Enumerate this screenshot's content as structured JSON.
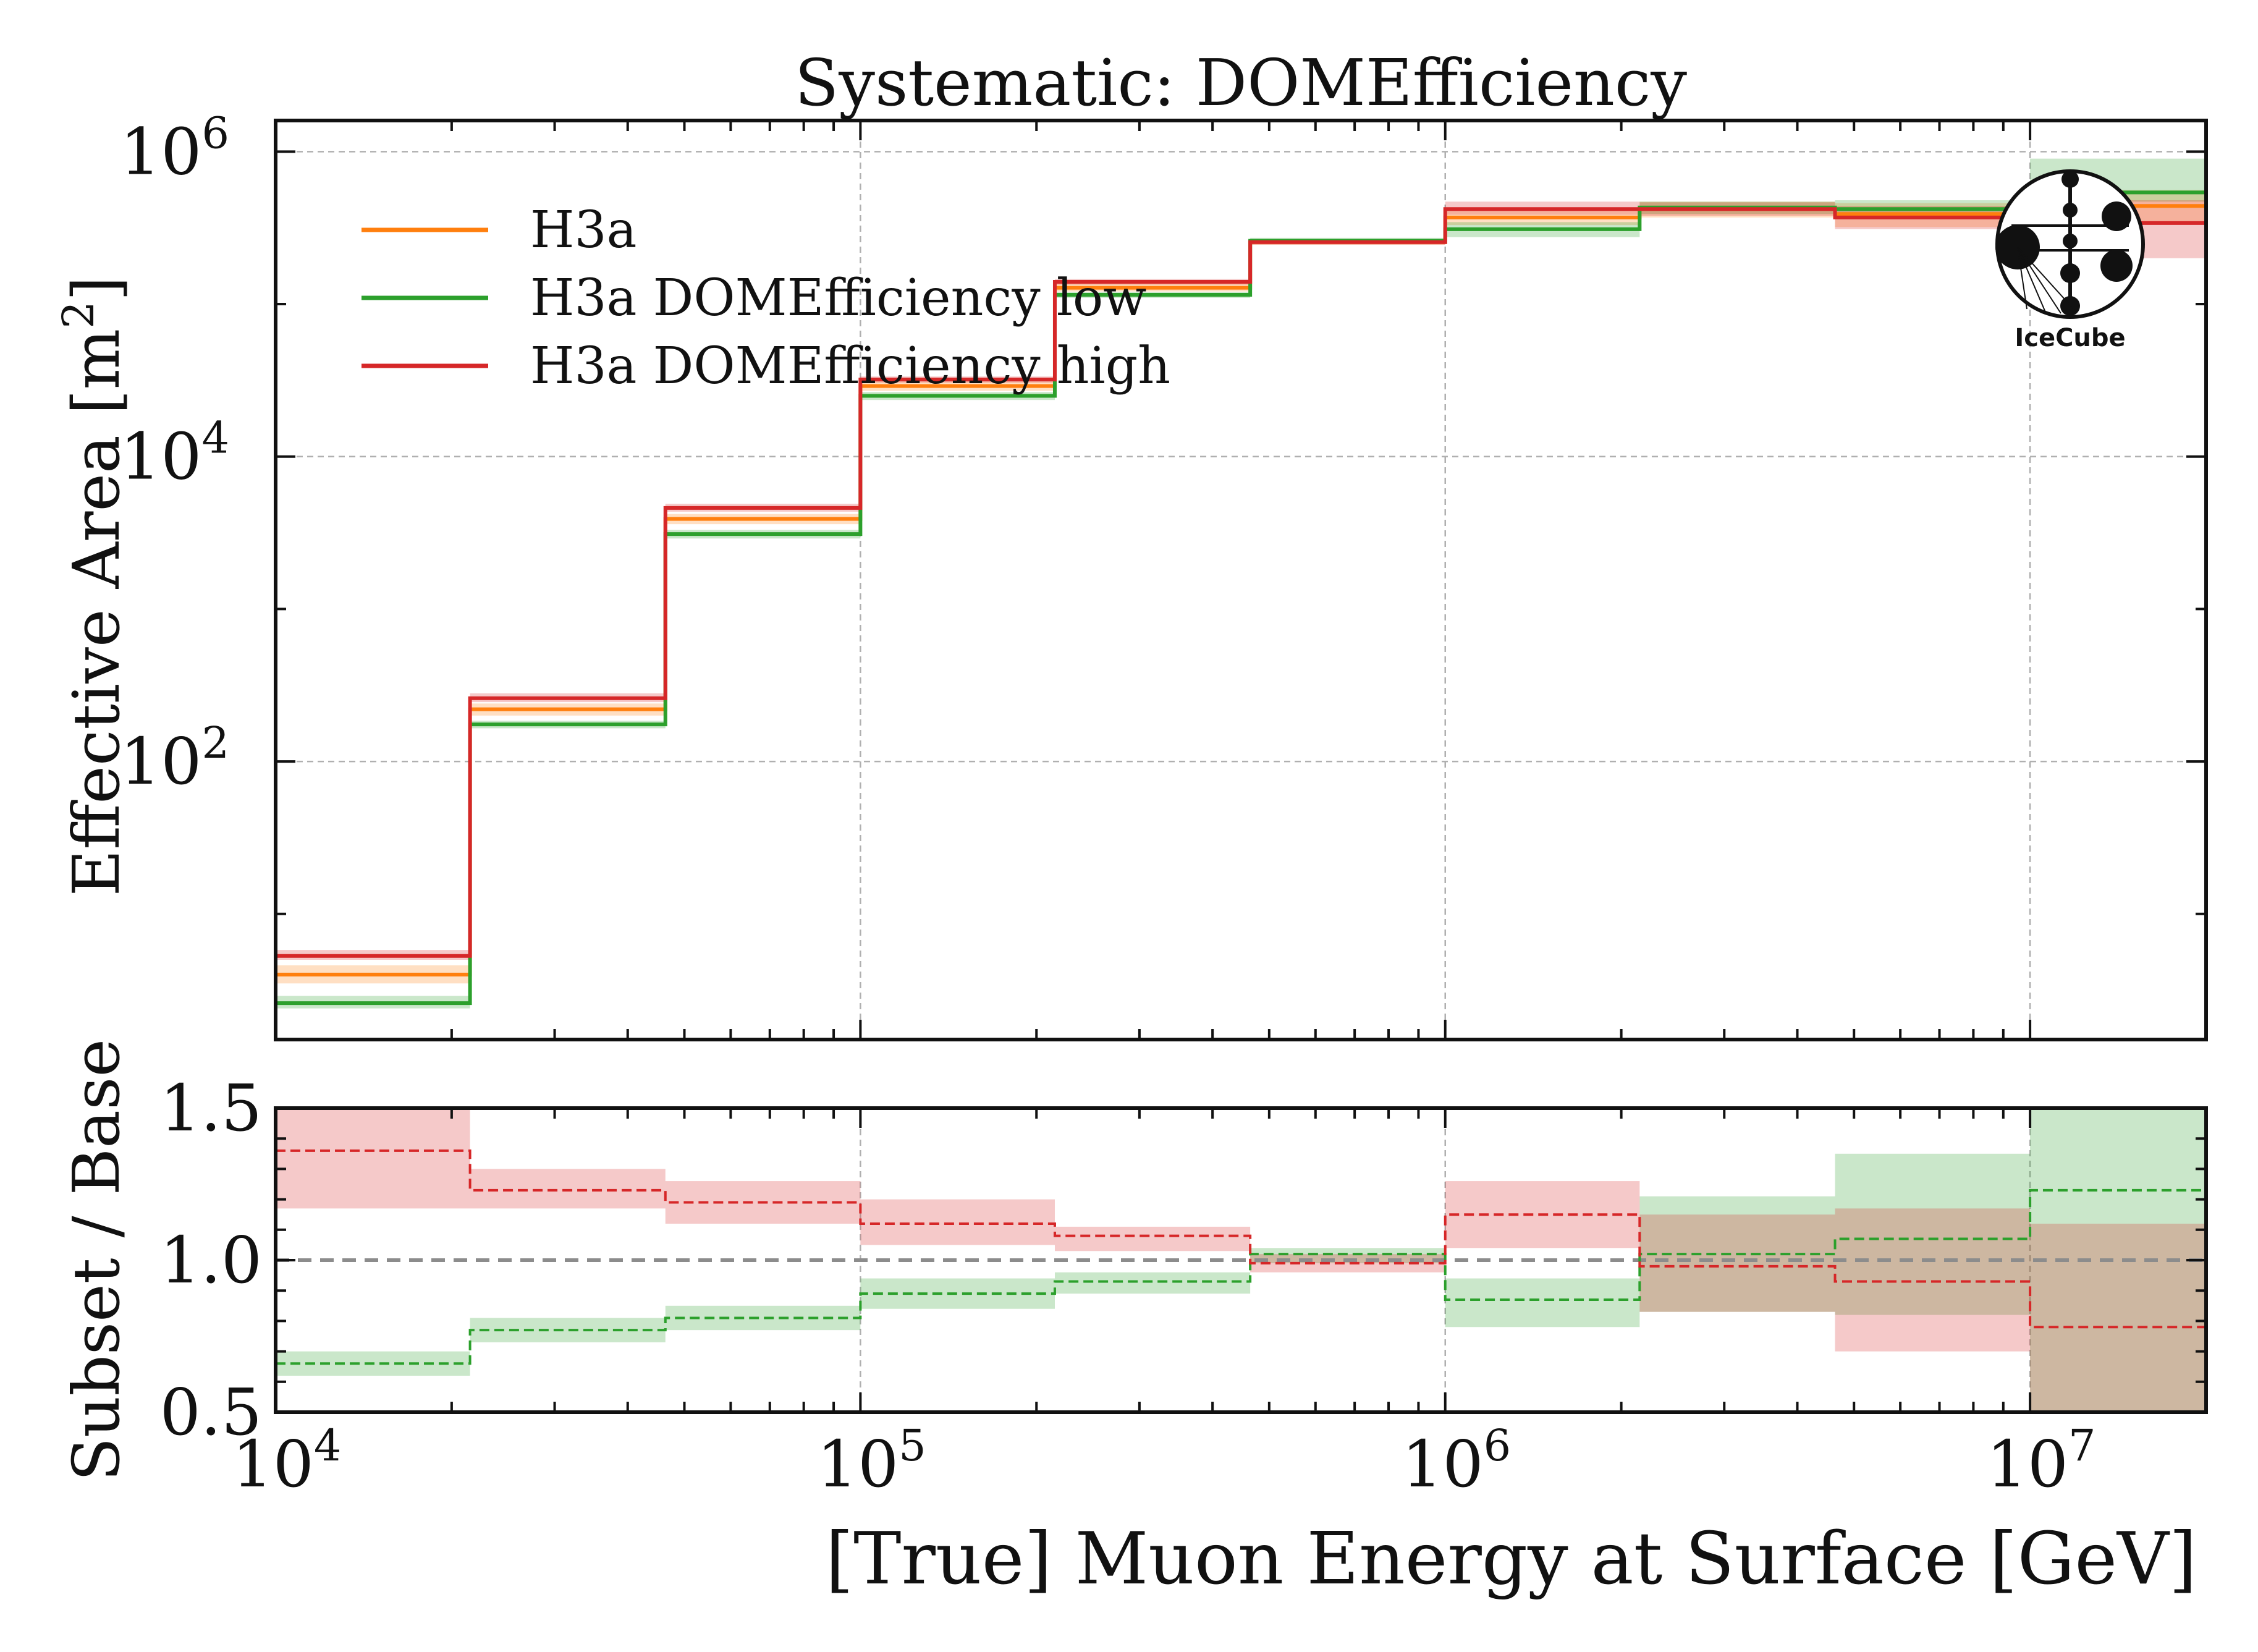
{
  "colors": {
    "H3a": "#ff7f0e",
    "H3a DOMEfficiency low": "#2ca02c",
    "H3a DOMEfficiency high": "#d62728",
    "grid": "#b0b0b0",
    "reference": "#8c8c8c"
  },
  "chart_data": [
    {
      "type": "step",
      "title": "Systematic: DOMEfficiency",
      "xlabel": "",
      "ylabel": "Effective Area [m",
      "ylabel_sup": "2",
      "ylabel_close": "]",
      "xscale": "log",
      "yscale": "log",
      "xlim": [
        10000,
        20000000
      ],
      "ylim": [
        1.5,
        1600000
      ],
      "yticks": [
        {
          "value": 100,
          "base": "10",
          "exp": "2"
        },
        {
          "value": 10000,
          "base": "10",
          "exp": "4"
        },
        {
          "value": 1000000,
          "base": "10",
          "exp": "6"
        }
      ],
      "grid": true,
      "legend_position": "top-left",
      "bin_edges": [
        10000,
        21500,
        46400,
        100000,
        215000,
        464000,
        1000000,
        2150000,
        4640000,
        10000000,
        20000000
      ],
      "series": [
        {
          "name": "H3a",
          "color_key": "H3a",
          "values": [
            4,
            220,
            3900,
            29000,
            128000,
            255000,
            370000,
            420000,
            390000,
            440000
          ],
          "band_low": [
            3.5,
            200,
            3600,
            27000,
            121000,
            245000,
            330000,
            370000,
            320000,
            340000
          ],
          "band_high": [
            4.6,
            240,
            4200,
            31000,
            136000,
            265000,
            410000,
            470000,
            460000,
            560000
          ]
        },
        {
          "name": "H3a DOMEfficiency low",
          "color_key": "H3a DOMEfficiency low",
          "values": [
            2.6,
            175,
            3100,
            25000,
            115000,
            260000,
            310000,
            430000,
            420000,
            540000
          ],
          "band_low": [
            2.4,
            165,
            2900,
            23500,
            110000,
            248000,
            275000,
            390000,
            360000,
            470000
          ],
          "band_high": [
            2.9,
            185,
            3300,
            26500,
            120000,
            272000,
            345000,
            470000,
            480000,
            900000
          ]
        },
        {
          "name": "H3a DOMEfficiency high",
          "color_key": "H3a DOMEfficiency high",
          "values": [
            5.3,
            260,
            4600,
            32000,
            140000,
            255000,
            420000,
            420000,
            370000,
            340000
          ],
          "band_low": [
            5,
            245,
            4350,
            30500,
            134000,
            245000,
            385000,
            380000,
            310000,
            200000
          ],
          "band_high": [
            5.8,
            280,
            4900,
            33500,
            146000,
            265000,
            470000,
            465000,
            440000,
            480000
          ]
        }
      ]
    },
    {
      "type": "step",
      "title": "",
      "xlabel": "[True] Muon Energy at Surface [GeV]",
      "ylabel": "Subset / Base",
      "xscale": "log",
      "yscale": "linear",
      "xlim": [
        10000,
        20000000
      ],
      "ylim": [
        0.5,
        1.5
      ],
      "yticks": [
        "0.5",
        "1.0",
        "1.5"
      ],
      "xticks": [
        {
          "value": 10000,
          "base": "10",
          "exp": "4"
        },
        {
          "value": 100000,
          "base": "10",
          "exp": "5"
        },
        {
          "value": 1000000,
          "base": "10",
          "exp": "6"
        },
        {
          "value": 10000000,
          "base": "10",
          "exp": "7"
        }
      ],
      "reference_line": 1.0,
      "bin_edges": [
        10000,
        21500,
        46400,
        100000,
        215000,
        464000,
        1000000,
        2150000,
        4640000,
        10000000,
        20000000
      ],
      "series": [
        {
          "name": "H3a DOMEfficiency low",
          "color_key": "H3a DOMEfficiency low",
          "values": [
            0.66,
            0.77,
            0.81,
            0.89,
            0.93,
            1.02,
            0.87,
            1.02,
            1.07,
            1.23
          ],
          "band_low": [
            0.62,
            0.73,
            0.77,
            0.84,
            0.89,
            0.99,
            0.78,
            0.83,
            0.82,
            0.5
          ],
          "band_high": [
            0.7,
            0.81,
            0.85,
            0.94,
            0.96,
            1.04,
            0.94,
            1.21,
            1.35,
            1.5
          ]
        },
        {
          "name": "H3a DOMEfficiency high",
          "color_key": "H3a DOMEfficiency high",
          "values": [
            1.36,
            1.23,
            1.19,
            1.12,
            1.08,
            0.99,
            1.15,
            0.98,
            0.93,
            0.78
          ],
          "band_low": [
            1.17,
            1.17,
            1.12,
            1.05,
            1.03,
            0.96,
            1.04,
            0.83,
            0.7,
            0.5
          ],
          "band_high": [
            1.5,
            1.3,
            1.26,
            1.2,
            1.11,
            1.02,
            1.26,
            1.15,
            1.17,
            1.12
          ]
        }
      ]
    }
  ],
  "logo": {
    "text": "IceCube"
  }
}
